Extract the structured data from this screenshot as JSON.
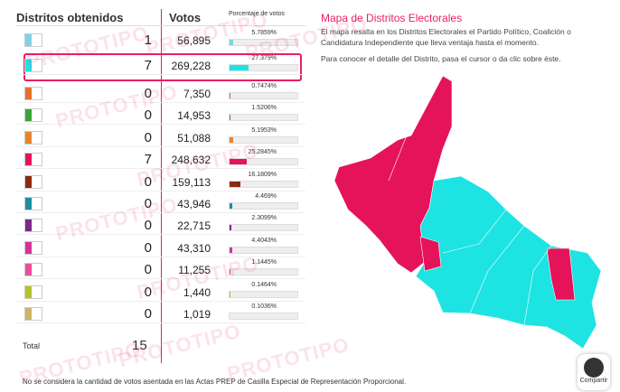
{
  "header": {
    "districts": "Distritos obtenidos",
    "votes": "Votos",
    "percent": "Porcentaje de votos"
  },
  "rows": [
    {
      "districts": 1,
      "votes": "56,895",
      "percent": {
        "value": 5.7859,
        "label": "5.7859%"
      },
      "color": "#7fd3e6"
    },
    {
      "districts": 7,
      "votes": "269,228",
      "percent": {
        "value": 27.379,
        "label": "27.379%"
      },
      "color": "#1ee3e3"
    },
    {
      "districts": 0,
      "votes": "7,350",
      "percent": {
        "value": 0.7474,
        "label": "0.7474%"
      },
      "color": "#e8702a"
    },
    {
      "districts": 0,
      "votes": "14,953",
      "percent": {
        "value": 1.5206,
        "label": "1.5206%"
      },
      "color": "#3aa33a"
    },
    {
      "districts": 0,
      "votes": "51,088",
      "percent": {
        "value": 5.1953,
        "label": "5.1953%"
      },
      "color": "#e8852a"
    },
    {
      "districts": 7,
      "votes": "248,632",
      "percent": {
        "value": 25.2845,
        "label": "25.2845%"
      },
      "color": "#e5135a"
    },
    {
      "districts": 0,
      "votes": "159,113",
      "percent": {
        "value": 16.1809,
        "label": "16.1809%"
      },
      "color": "#8b2a10"
    },
    {
      "districts": 0,
      "votes": "43,946",
      "percent": {
        "value": 4.469,
        "label": "4.469%"
      },
      "color": "#1b8fa0"
    },
    {
      "districts": 0,
      "votes": "22,715",
      "percent": {
        "value": 2.3099,
        "label": "2.3099%"
      },
      "color": "#7a2a8c"
    },
    {
      "districts": 0,
      "votes": "43,310",
      "percent": {
        "value": 4.4043,
        "label": "4.4043%"
      },
      "color": "#d6339a"
    },
    {
      "districts": 0,
      "votes": "11,255",
      "percent": {
        "value": 1.1445,
        "label": "1.1445%"
      },
      "color": "#e94f9a"
    },
    {
      "districts": 0,
      "votes": "1,440",
      "percent": {
        "value": 0.1464,
        "label": "0.1464%"
      },
      "color": "#b5c22a"
    },
    {
      "districts": 0,
      "votes": "1,019",
      "percent": {
        "value": 0.1036,
        "label": "0.1036%"
      },
      "color": "#c8b56a"
    }
  ],
  "total": {
    "label": "Total",
    "value": 15
  },
  "watermark": "PROTOTIPO",
  "footnote": "No se considera la cantidad de votos asentada en las Actas PREP de Casilla Especial de Representación Proporcional.",
  "map": {
    "title": "Mapa de Distritos Electorales",
    "description": "El mapa resalta en los Distritos Electorales el Partido Político, Coalición o Candidatura Independiente que lleva ventaja hasta el momento.",
    "hint": "Para conocer el detalle del Distrito, pasa el cursor o da clic sobre éste."
  },
  "share": "Compartir"
}
